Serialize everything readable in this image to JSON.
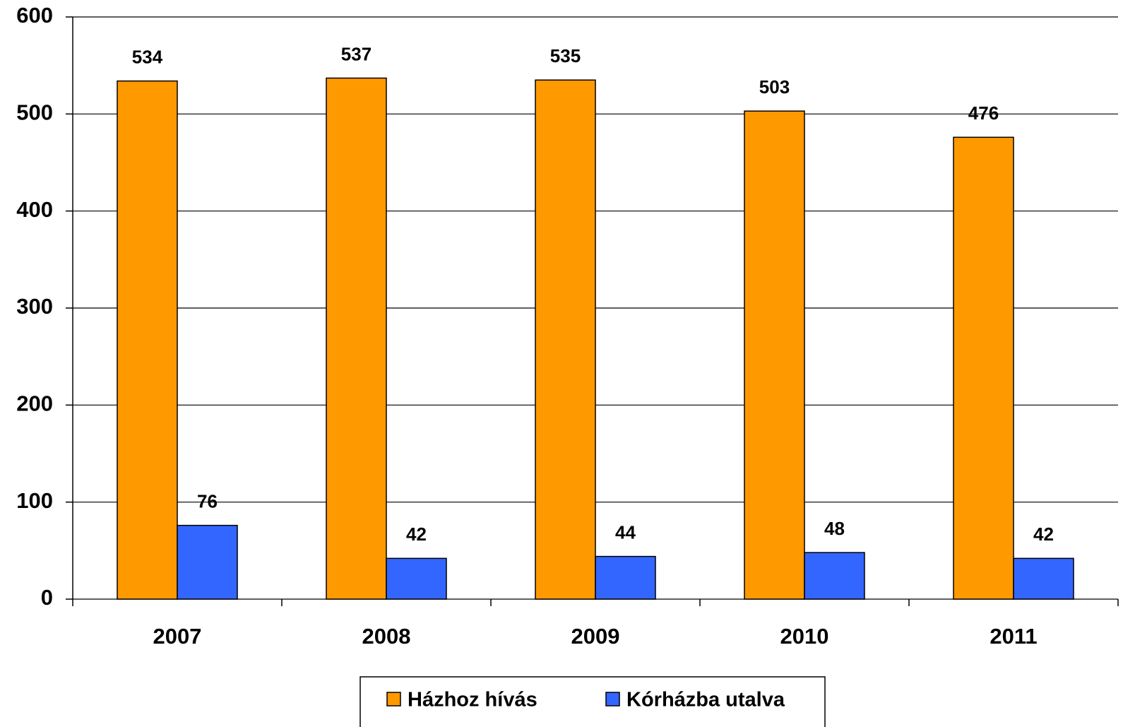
{
  "chart_data": {
    "type": "bar",
    "categories": [
      "2007",
      "2008",
      "2009",
      "2010",
      "2011"
    ],
    "series": [
      {
        "name": "Házhoz hívás",
        "color": "#ff9900",
        "values": [
          534,
          537,
          535,
          503,
          476
        ]
      },
      {
        "name": "Kórházba utalva",
        "color": "#3366ff",
        "values": [
          76,
          42,
          44,
          48,
          42
        ]
      }
    ],
    "ylim": [
      0,
      600
    ],
    "yticks": [
      0,
      100,
      200,
      300,
      400,
      500,
      600
    ],
    "grid": true,
    "legend": "bottom"
  }
}
